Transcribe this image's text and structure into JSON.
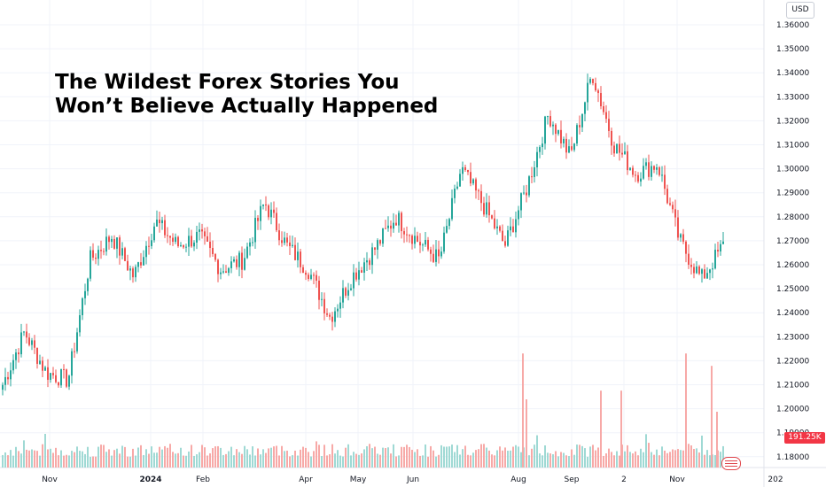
{
  "headline": {
    "line1": "The Wildest Forex Stories You",
    "line2": "Won’t Believe Actually Happened"
  },
  "currency_button": "USD",
  "volume_badge": "191.25K",
  "colors": {
    "up": "#26a69a",
    "down": "#ef5350",
    "vol_up": "#9fd9d4",
    "vol_down": "#f7a9a7",
    "grid": "#f0f3fa",
    "badge": "#f23645"
  },
  "chart_data": {
    "type": "candlestick",
    "title": "The Wildest Forex Stories You Won’t Believe Actually Happened",
    "y_unit": "USD",
    "ylim": [
      1.175,
      1.365
    ],
    "y_ticks": [
      "1.36000",
      "1.35000",
      "1.34000",
      "1.33000",
      "1.32000",
      "1.31000",
      "1.30000",
      "1.29000",
      "1.28000",
      "1.27000",
      "1.26000",
      "1.25000",
      "1.24000",
      "1.23000",
      "1.22000",
      "1.21000",
      "1.20000",
      "1.19000",
      "1.18000"
    ],
    "x_ticks": [
      "Nov",
      "2024",
      "Feb",
      "Apr",
      "May",
      "Jun",
      "Aug",
      "Sep",
      "2",
      "Nov",
      "202"
    ],
    "volume_last": "191.25K",
    "anchors": [
      [
        "Nov",
        1.21
      ],
      [
        "Nov",
        1.232
      ],
      [
        "Nov",
        1.215
      ],
      [
        "Nov",
        1.212
      ],
      [
        "Dec",
        1.262
      ],
      [
        "Dec",
        1.272
      ],
      [
        "Dec",
        1.255
      ],
      [
        "2024",
        1.278
      ],
      [
        "2024",
        1.268
      ],
      [
        "Feb",
        1.272
      ],
      [
        "Feb",
        1.258
      ],
      [
        "Feb",
        1.262
      ],
      [
        "Mar",
        1.286
      ],
      [
        "Mar",
        1.268
      ],
      [
        "Apr",
        1.258
      ],
      [
        "Apr",
        1.238
      ],
      [
        "May",
        1.255
      ],
      [
        "May",
        1.266
      ],
      [
        "Jun",
        1.28
      ],
      [
        "Jun",
        1.27
      ],
      [
        "Jul",
        1.262
      ],
      [
        "Jul",
        1.3
      ],
      [
        "Aug",
        1.285
      ],
      [
        "Aug",
        1.268
      ],
      [
        "Aug",
        1.292
      ],
      [
        "Sep",
        1.323
      ],
      [
        "Sep",
        1.305
      ],
      [
        "Sep",
        1.34
      ],
      [
        "Oct",
        1.31
      ],
      [
        "Oct",
        1.298
      ],
      [
        "Oct",
        1.302
      ],
      [
        "Nov",
        1.27
      ],
      [
        "Nov",
        1.254
      ],
      [
        "Nov",
        1.268
      ]
    ],
    "volume_peaks": [
      [
        "Aug",
        0.55
      ],
      [
        "Sep",
        0.42
      ],
      [
        "Oct",
        0.55
      ],
      [
        "Nov",
        0.5
      ],
      [
        "Nov",
        0.45
      ]
    ]
  }
}
